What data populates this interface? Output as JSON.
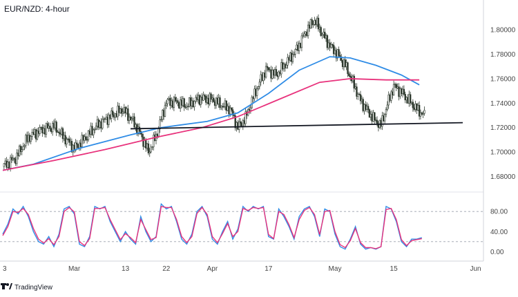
{
  "chart_data": [
    {
      "type": "candlestick",
      "title": "EUR/NZD: 4-hour",
      "x_tick_labels": [
        "3",
        "Mar",
        "13",
        "22",
        "Apr",
        "17",
        "May",
        "15",
        "Jun"
      ],
      "y_tick_labels": [
        "1.80000",
        "1.78000",
        "1.76000",
        "1.74000",
        "1.72000",
        "1.70000",
        "1.68000"
      ],
      "ylim": [
        1.674,
        1.812
      ],
      "price_path": [
        [
          0,
          1.688
        ],
        [
          5,
          1.695
        ],
        [
          10,
          1.712
        ],
        [
          15,
          1.718
        ],
        [
          20,
          1.721
        ],
        [
          24,
          1.712
        ],
        [
          28,
          1.703
        ],
        [
          32,
          1.711
        ],
        [
          37,
          1.722
        ],
        [
          42,
          1.729
        ],
        [
          47,
          1.735
        ],
        [
          51,
          1.725
        ],
        [
          54,
          1.714
        ],
        [
          57,
          1.7
        ],
        [
          60,
          1.713
        ],
        [
          64,
          1.741
        ],
        [
          68,
          1.741
        ],
        [
          72,
          1.738
        ],
        [
          77,
          1.744
        ],
        [
          82,
          1.743
        ],
        [
          86,
          1.738
        ],
        [
          89,
          1.735
        ],
        [
          92,
          1.72
        ],
        [
          95,
          1.728
        ],
        [
          99,
          1.75
        ],
        [
          103,
          1.768
        ],
        [
          107,
          1.763
        ],
        [
          111,
          1.773
        ],
        [
          115,
          1.784
        ],
        [
          119,
          1.8
        ],
        [
          122,
          1.808
        ],
        [
          125,
          1.797
        ],
        [
          128,
          1.787
        ],
        [
          131,
          1.78
        ],
        [
          134,
          1.771
        ],
        [
          137,
          1.757
        ],
        [
          140,
          1.742
        ],
        [
          143,
          1.733
        ],
        [
          146,
          1.725
        ],
        [
          148,
          1.722
        ],
        [
          151,
          1.742
        ],
        [
          153,
          1.754
        ],
        [
          156,
          1.749
        ],
        [
          159,
          1.742
        ],
        [
          162,
          1.735
        ],
        [
          165,
          1.73
        ]
      ],
      "series": [
        {
          "name": "",
          "type": "moving-average",
          "color": "#2f8ce6",
          "values": [
            [
              0,
              1.685
            ],
            [
              12,
              1.69
            ],
            [
              30,
              1.703
            ],
            [
              50,
              1.714
            ],
            [
              62,
              1.72
            ],
            [
              80,
              1.725
            ],
            [
              92,
              1.732
            ],
            [
              104,
              1.748
            ],
            [
              116,
              1.767
            ],
            [
              128,
              1.778
            ],
            [
              136,
              1.777
            ],
            [
              146,
              1.771
            ],
            [
              156,
              1.763
            ],
            [
              163,
              1.755
            ]
          ]
        },
        {
          "name": "",
          "type": "moving-average",
          "color": "#e8327c",
          "values": [
            [
              0,
              1.685
            ],
            [
              20,
              1.693
            ],
            [
              40,
              1.702
            ],
            [
              60,
              1.712
            ],
            [
              78,
              1.72
            ],
            [
              92,
              1.729
            ],
            [
              108,
              1.743
            ],
            [
              124,
              1.757
            ],
            [
              136,
              1.76
            ],
            [
              150,
              1.759
            ],
            [
              163,
              1.759
            ]
          ]
        }
      ],
      "annotations": [
        {
          "type": "support-line",
          "color": "#131722",
          "x": [
            50,
            180
          ],
          "y": [
            1.719,
            1.724
          ]
        }
      ]
    },
    {
      "type": "line",
      "title": "",
      "y_tick_labels": [
        "80.00",
        "40.00",
        "0.00"
      ],
      "ylim": [
        -5,
        105
      ],
      "levels": [
        80,
        20
      ],
      "x_label_centers": [
        0,
        28,
        48,
        64,
        82,
        104,
        130,
        153,
        185
      ],
      "series": [
        {
          "name": "",
          "color": "#2f8ce6",
          "values": [
            [
              0,
              35
            ],
            [
              2,
              55
            ],
            [
              4,
              85
            ],
            [
              6,
              75
            ],
            [
              8,
              90
            ],
            [
              10,
              70
            ],
            [
              12,
              40
            ],
            [
              14,
              20
            ],
            [
              16,
              15
            ],
            [
              18,
              30
            ],
            [
              20,
              10
            ],
            [
              22,
              35
            ],
            [
              24,
              85
            ],
            [
              26,
              90
            ],
            [
              28,
              75
            ],
            [
              30,
              15
            ],
            [
              32,
              10
            ],
            [
              34,
              30
            ],
            [
              36,
              90
            ],
            [
              38,
              85
            ],
            [
              40,
              90
            ],
            [
              42,
              60
            ],
            [
              44,
              40
            ],
            [
              46,
              20
            ],
            [
              48,
              40
            ],
            [
              50,
              25
            ],
            [
              52,
              15
            ],
            [
              54,
              70
            ],
            [
              56,
              40
            ],
            [
              58,
              20
            ],
            [
              60,
              30
            ],
            [
              62,
              95
            ],
            [
              64,
              85
            ],
            [
              66,
              90
            ],
            [
              68,
              60
            ],
            [
              70,
              25
            ],
            [
              72,
              15
            ],
            [
              74,
              35
            ],
            [
              76,
              80
            ],
            [
              78,
              90
            ],
            [
              80,
              70
            ],
            [
              82,
              25
            ],
            [
              84,
              15
            ],
            [
              86,
              40
            ],
            [
              88,
              60
            ],
            [
              90,
              25
            ],
            [
              92,
              45
            ],
            [
              94,
              90
            ],
            [
              96,
              80
            ],
            [
              98,
              90
            ],
            [
              100,
              85
            ],
            [
              102,
              90
            ],
            [
              104,
              30
            ],
            [
              106,
              25
            ],
            [
              108,
              85
            ],
            [
              110,
              70
            ],
            [
              112,
              50
            ],
            [
              114,
              25
            ],
            [
              116,
              70
            ],
            [
              118,
              85
            ],
            [
              120,
              90
            ],
            [
              122,
              70
            ],
            [
              124,
              30
            ],
            [
              126,
              85
            ],
            [
              128,
              80
            ],
            [
              130,
              35
            ],
            [
              132,
              10
            ],
            [
              134,
              5
            ],
            [
              136,
              25
            ],
            [
              138,
              50
            ],
            [
              140,
              15
            ],
            [
              142,
              5
            ],
            [
              144,
              8
            ],
            [
              146,
              5
            ],
            [
              148,
              10
            ],
            [
              150,
              90
            ],
            [
              152,
              85
            ],
            [
              154,
              60
            ],
            [
              156,
              20
            ],
            [
              158,
              10
            ],
            [
              160,
              25
            ],
            [
              162,
              25
            ],
            [
              164,
              28
            ]
          ]
        },
        {
          "name": "",
          "color": "#e8327c",
          "values": [
            [
              0,
              32
            ],
            [
              2,
              50
            ],
            [
              4,
              80
            ],
            [
              6,
              78
            ],
            [
              8,
              86
            ],
            [
              10,
              74
            ],
            [
              12,
              46
            ],
            [
              14,
              25
            ],
            [
              16,
              17
            ],
            [
              18,
              26
            ],
            [
              20,
              14
            ],
            [
              22,
              30
            ],
            [
              24,
              80
            ],
            [
              26,
              88
            ],
            [
              28,
              79
            ],
            [
              30,
              20
            ],
            [
              32,
              12
            ],
            [
              34,
              26
            ],
            [
              36,
              86
            ],
            [
              38,
              86
            ],
            [
              40,
              88
            ],
            [
              42,
              64
            ],
            [
              44,
              44
            ],
            [
              46,
              24
            ],
            [
              48,
              36
            ],
            [
              50,
              28
            ],
            [
              52,
              18
            ],
            [
              54,
              64
            ],
            [
              56,
              44
            ],
            [
              58,
              24
            ],
            [
              60,
              28
            ],
            [
              62,
              90
            ],
            [
              64,
              88
            ],
            [
              66,
              88
            ],
            [
              68,
              64
            ],
            [
              70,
              30
            ],
            [
              72,
              18
            ],
            [
              74,
              30
            ],
            [
              76,
              76
            ],
            [
              78,
              88
            ],
            [
              80,
              74
            ],
            [
              82,
              30
            ],
            [
              84,
              18
            ],
            [
              86,
              36
            ],
            [
              88,
              56
            ],
            [
              90,
              30
            ],
            [
              92,
              40
            ],
            [
              94,
              86
            ],
            [
              96,
              82
            ],
            [
              98,
              88
            ],
            [
              100,
              86
            ],
            [
              102,
              88
            ],
            [
              104,
              34
            ],
            [
              106,
              26
            ],
            [
              108,
              80
            ],
            [
              110,
              74
            ],
            [
              112,
              54
            ],
            [
              114,
              28
            ],
            [
              116,
              64
            ],
            [
              118,
              82
            ],
            [
              120,
              88
            ],
            [
              122,
              74
            ],
            [
              124,
              34
            ],
            [
              126,
              80
            ],
            [
              128,
              82
            ],
            [
              130,
              40
            ],
            [
              132,
              14
            ],
            [
              134,
              8
            ],
            [
              136,
              22
            ],
            [
              138,
              46
            ],
            [
              140,
              18
            ],
            [
              142,
              8
            ],
            [
              144,
              8
            ],
            [
              146,
              6
            ],
            [
              148,
              10
            ],
            [
              150,
              84
            ],
            [
              152,
              86
            ],
            [
              154,
              64
            ],
            [
              156,
              24
            ],
            [
              158,
              12
            ],
            [
              160,
              22
            ],
            [
              162,
              24
            ],
            [
              164,
              26
            ]
          ]
        }
      ]
    }
  ],
  "branding": {
    "logo_icon": "tradingview-logo-icon",
    "logo_text": "TradingView"
  }
}
